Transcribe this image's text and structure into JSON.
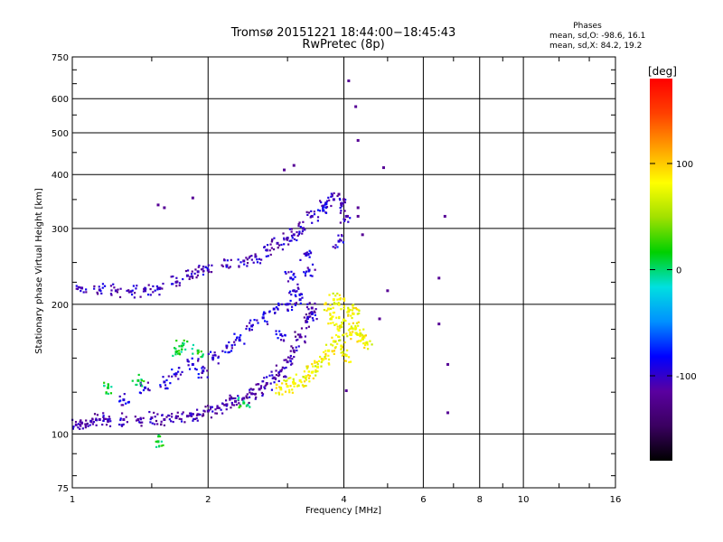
{
  "chart_data": {
    "type": "scatter",
    "title": "Tromsø 20151221 18:44:00−18:45:43",
    "subtitle": "RwPretec (8p)",
    "xlabel": "Frequency [MHz]",
    "ylabel": "Stationary phase Virtual Height [km]",
    "x_scale": "log",
    "y_scale": "log",
    "xlim": [
      1,
      16
    ],
    "ylim": [
      75,
      750
    ],
    "x_ticks": [
      1,
      2,
      4,
      6,
      8,
      10,
      16
    ],
    "x_tick_labels": [
      "1",
      "2",
      "4",
      "6",
      "8",
      "10",
      "16"
    ],
    "y_ticks": [
      75,
      100,
      200,
      300,
      400,
      500,
      600,
      750
    ],
    "y_tick_labels": [
      "75",
      "100",
      "200",
      "300",
      "400",
      "500",
      "600",
      "750"
    ],
    "grid": true,
    "stats": {
      "heading": "Phases",
      "line_o": "mean, sd,O: -98.6, 16.1",
      "line_x": "mean, sd,X: 84.2, 19.2"
    },
    "colorbar": {
      "label": "[deg]",
      "range": [
        -180,
        180
      ],
      "ticks": [
        100,
        0,
        -100
      ],
      "tick_labels": [
        "100",
        "0",
        "-100"
      ],
      "colors": [
        "#000000",
        "#3a0060",
        "#5a00a0",
        "#0000ff",
        "#0090ff",
        "#00e0e0",
        "#00d000",
        "#a0e000",
        "#ffff00",
        "#ffa000",
        "#ff4000",
        "#ff0000"
      ]
    },
    "series": [
      {
        "trace": "lower-o-trace",
        "phase": -110,
        "points": [
          [
            1.02,
            105
          ],
          [
            1.05,
            106
          ],
          [
            1.1,
            107
          ],
          [
            1.15,
            108
          ],
          [
            1.2,
            107
          ],
          [
            1.3,
            108
          ],
          [
            1.4,
            108
          ],
          [
            1.5,
            109
          ],
          [
            1.6,
            108
          ],
          [
            1.7,
            109
          ],
          [
            1.8,
            110
          ],
          [
            1.9,
            111
          ],
          [
            2.0,
            113
          ],
          [
            2.1,
            115
          ],
          [
            2.2,
            117
          ],
          [
            2.3,
            119
          ],
          [
            2.4,
            121
          ],
          [
            2.5,
            124
          ],
          [
            2.6,
            127
          ],
          [
            2.7,
            131
          ],
          [
            2.8,
            135
          ],
          [
            2.9,
            140
          ],
          [
            3.0,
            147
          ],
          [
            3.1,
            156
          ],
          [
            3.2,
            168
          ],
          [
            3.3,
            182
          ],
          [
            3.4,
            196
          ]
        ]
      },
      {
        "trace": "upper-o-trace",
        "phase": -105,
        "points": [
          [
            1.05,
            218
          ],
          [
            1.15,
            216
          ],
          [
            1.25,
            215
          ],
          [
            1.35,
            214
          ],
          [
            1.45,
            215
          ],
          [
            1.55,
            218
          ],
          [
            1.7,
            225
          ],
          [
            1.8,
            233
          ],
          [
            1.9,
            238
          ],
          [
            2.0,
            240
          ],
          [
            2.2,
            246
          ],
          [
            2.4,
            252
          ],
          [
            2.55,
            258
          ],
          [
            2.7,
            267
          ],
          [
            2.85,
            277
          ],
          [
            3.0,
            285
          ],
          [
            3.1,
            290
          ],
          [
            3.25,
            300
          ],
          [
            3.4,
            320
          ],
          [
            3.6,
            338
          ],
          [
            3.8,
            350
          ],
          [
            3.95,
            340
          ],
          [
            4.05,
            320
          ]
        ]
      },
      {
        "trace": "scattered-o-echoes",
        "phase": -95,
        "points": [
          [
            1.3,
            120
          ],
          [
            1.45,
            128
          ],
          [
            1.6,
            132
          ],
          [
            1.7,
            138
          ],
          [
            1.85,
            145
          ],
          [
            1.95,
            140
          ],
          [
            2.05,
            150
          ],
          [
            2.2,
            160
          ],
          [
            2.35,
            165
          ],
          [
            2.5,
            178
          ],
          [
            2.65,
            186
          ],
          [
            2.8,
            195
          ],
          [
            3.0,
            200
          ],
          [
            3.1,
            215
          ],
          [
            3.2,
            205
          ],
          [
            3.3,
            260
          ],
          [
            3.4,
            190
          ],
          [
            2.9,
            170
          ],
          [
            3.05,
            230
          ],
          [
            3.35,
            240
          ],
          [
            3.6,
            330
          ],
          [
            3.9,
            280
          ]
        ]
      },
      {
        "trace": "x-mode-trace",
        "phase": 80,
        "points": [
          [
            2.9,
            127
          ],
          [
            3.0,
            129
          ],
          [
            3.1,
            131
          ],
          [
            3.2,
            133
          ],
          [
            3.3,
            136
          ],
          [
            3.4,
            139
          ],
          [
            3.5,
            143
          ],
          [
            3.6,
            149
          ],
          [
            3.7,
            156
          ],
          [
            3.8,
            164
          ],
          [
            3.9,
            174
          ],
          [
            4.0,
            184
          ],
          [
            4.1,
            194
          ],
          [
            4.2,
            190
          ],
          [
            4.25,
            176
          ],
          [
            4.3,
            170
          ],
          [
            4.4,
            166
          ],
          [
            4.5,
            163
          ],
          [
            3.9,
            200
          ],
          [
            3.8,
            205
          ],
          [
            3.7,
            195
          ],
          [
            3.75,
            185
          ],
          [
            3.95,
            160
          ],
          [
            4.05,
            152
          ],
          [
            4.15,
            170
          ]
        ]
      },
      {
        "trace": "green-echoes",
        "phase": 10,
        "points": [
          [
            1.2,
            128
          ],
          [
            1.4,
            133
          ],
          [
            1.7,
            155
          ],
          [
            1.75,
            160
          ],
          [
            1.9,
            156
          ],
          [
            2.4,
            118
          ],
          [
            1.55,
            96
          ]
        ]
      },
      {
        "trace": "isolated-echoes",
        "phase": -120,
        "points": [
          [
            1.55,
            340
          ],
          [
            1.6,
            335
          ],
          [
            1.85,
            353
          ],
          [
            2.95,
            410
          ],
          [
            3.1,
            420
          ],
          [
            4.1,
            660
          ],
          [
            4.25,
            575
          ],
          [
            4.3,
            480
          ],
          [
            4.9,
            415
          ],
          [
            6.7,
            320
          ],
          [
            6.5,
            230
          ],
          [
            6.5,
            180
          ],
          [
            6.8,
            145
          ],
          [
            6.8,
            112
          ],
          [
            4.3,
            335
          ],
          [
            3.9,
            360
          ],
          [
            4.0,
            350
          ],
          [
            4.3,
            320
          ],
          [
            5.0,
            215
          ],
          [
            4.8,
            185
          ],
          [
            4.05,
            126
          ],
          [
            4.4,
            290
          ]
        ]
      }
    ]
  }
}
